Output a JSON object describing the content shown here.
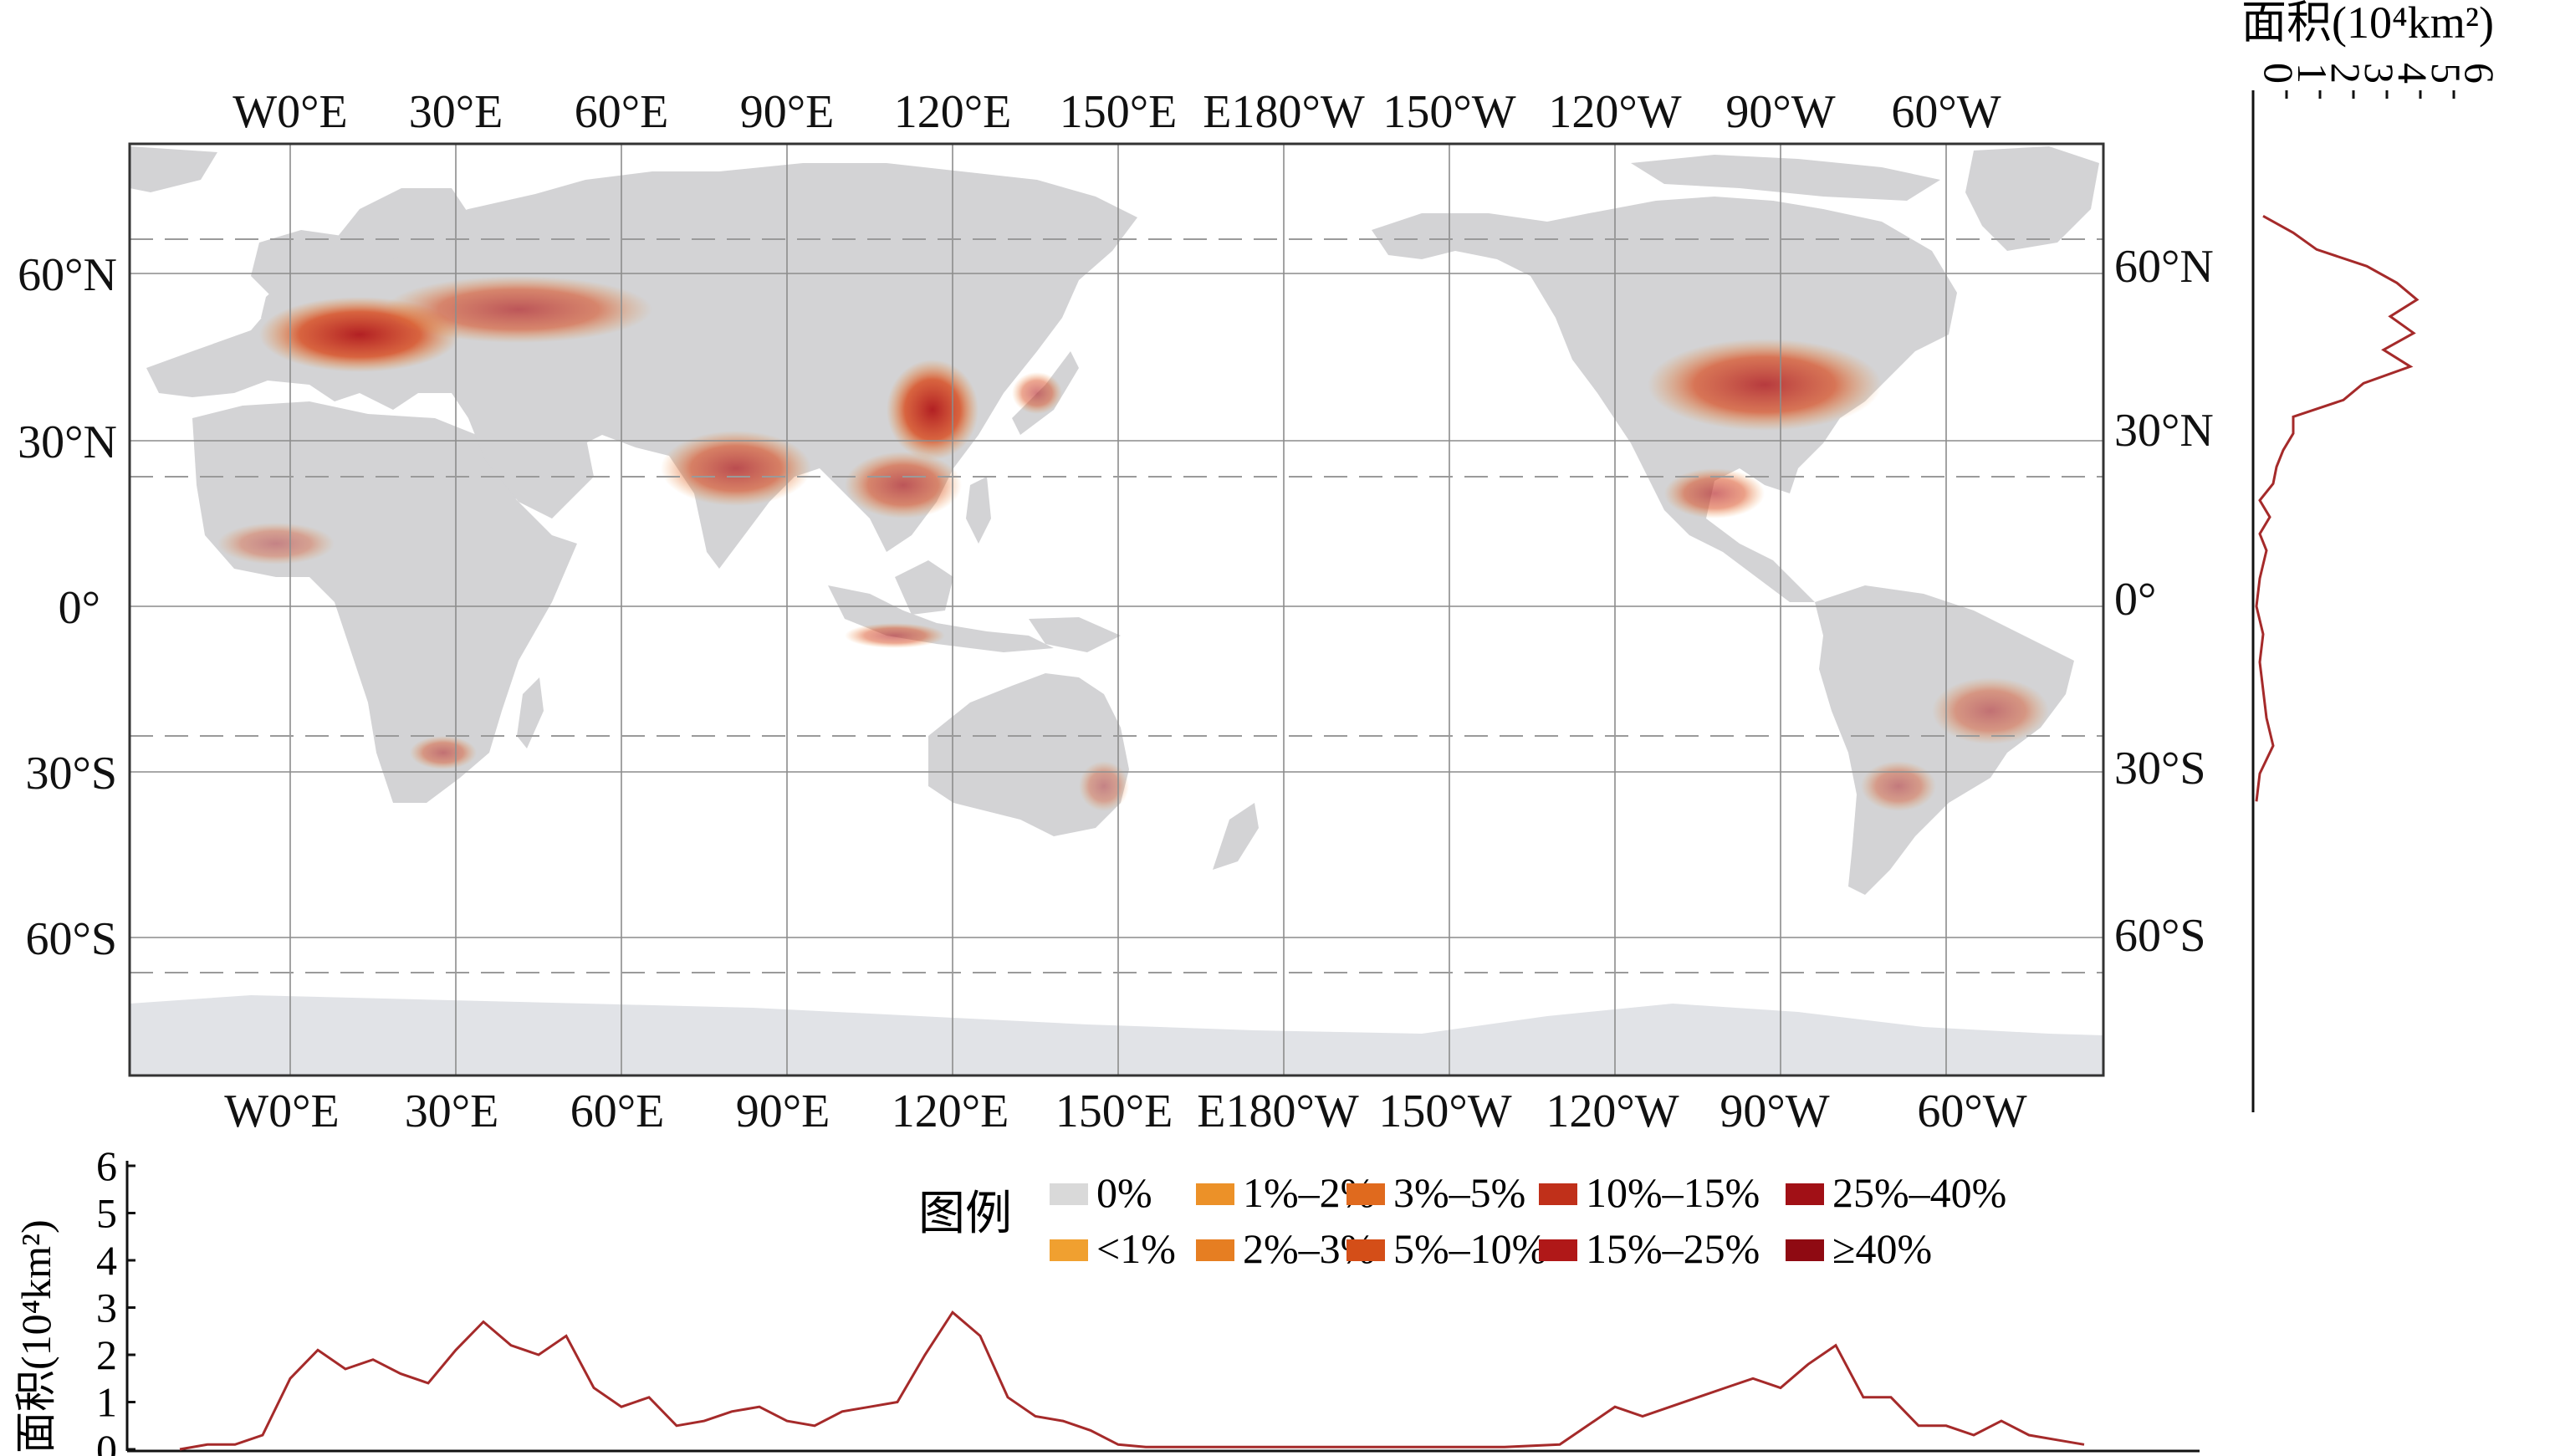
{
  "map": {
    "top_lon_labels": [
      "W0°E",
      "30°E",
      "60°E",
      "90°E",
      "120°E",
      "150°E",
      "E180°W",
      "150°W",
      "120°W",
      "90°W",
      "60°W"
    ],
    "bottom_lon_labels": [
      "W0°E",
      "30°E",
      "60°E",
      "90°E",
      "120°E",
      "150°E",
      "E180°W",
      "150°W",
      "120°W",
      "90°W",
      "60°W"
    ],
    "left_lat_labels": [
      "60°N",
      "30°N",
      "0°",
      "30°S",
      "60°S"
    ],
    "right_lat_labels": [
      "60°N",
      "30°N",
      "0°",
      "30°S",
      "60°S"
    ],
    "colors": {
      "land": "#d3d3d5",
      "ocean": "#ffffff",
      "antarctica": "#e0e2e6",
      "grid": "#888888",
      "tropic_lines": "#999999"
    }
  },
  "legend": {
    "title": "图例",
    "items": [
      {
        "label": "0%",
        "color": "#d9d9d9"
      },
      {
        "label": "<1%",
        "color": "#f0a030"
      },
      {
        "label": "1%–2%",
        "color": "#ec9128"
      },
      {
        "label": "2%–3%",
        "color": "#e67e22"
      },
      {
        "label": "3%–5%",
        "color": "#e06a1e"
      },
      {
        "label": "5%–10%",
        "color": "#d44e18"
      },
      {
        "label": "10%–15%",
        "color": "#c0301a"
      },
      {
        "label": "15%–25%",
        "color": "#b01818"
      },
      {
        "label": "25%–40%",
        "color": "#a11016"
      },
      {
        "label": "≥40%",
        "color": "#8f0a12"
      }
    ]
  },
  "chart_data": [
    {
      "type": "line",
      "orientation": "vertical",
      "ylabel_text": "面积",
      "ylabel_unit": "(10⁴km²)",
      "axis_ticks": [
        "0",
        "1",
        "2",
        "3",
        "4",
        "5",
        "6"
      ],
      "xlim": [
        0,
        6
      ],
      "line_color": "#a52a2a",
      "series": [
        {
          "lat": [
            70,
            67,
            64,
            61,
            58,
            55,
            52,
            49,
            46,
            43,
            40,
            37,
            34,
            31,
            28,
            25,
            22,
            19,
            16,
            13,
            10,
            5,
            0,
            -5,
            -10,
            -15,
            -20,
            -25,
            -30,
            -35
          ],
          "values": [
            0.3,
            1.2,
            1.9,
            3.4,
            4.3,
            4.9,
            4.1,
            4.8,
            3.9,
            4.7,
            3.3,
            2.7,
            1.2,
            1.2,
            0.9,
            0.7,
            0.6,
            0.2,
            0.5,
            0.2,
            0.4,
            0.2,
            0.1,
            0.3,
            0.2,
            0.3,
            0.4,
            0.6,
            0.2,
            0.1
          ]
        }
      ]
    },
    {
      "type": "line",
      "ylabel_text": "面积",
      "ylabel_unit": "(10⁴km²)",
      "yticks": [
        "0",
        "1",
        "2",
        "3",
        "4",
        "5",
        "6"
      ],
      "ylim": [
        0,
        6
      ],
      "line_color": "#a52a2a",
      "series": [
        {
          "lon": [
            -20,
            -15,
            -10,
            -5,
            0,
            5,
            10,
            15,
            20,
            25,
            30,
            35,
            40,
            45,
            50,
            55,
            60,
            65,
            70,
            75,
            80,
            85,
            90,
            95,
            100,
            105,
            110,
            115,
            120,
            125,
            130,
            135,
            140,
            145,
            150,
            155,
            160,
            170,
            180,
            -170,
            -160,
            -150,
            -140,
            -130,
            -125,
            -120,
            -115,
            -110,
            -105,
            -100,
            -95,
            -90,
            -85,
            -80,
            -75,
            -70,
            -65,
            -60,
            -55,
            -50,
            -45,
            -40,
            -35
          ],
          "values": [
            0,
            0.1,
            0.1,
            0.3,
            1.5,
            2.1,
            1.7,
            1.9,
            1.6,
            1.4,
            2.1,
            2.7,
            2.2,
            2.0,
            2.4,
            1.3,
            0.9,
            1.1,
            0.5,
            0.6,
            0.8,
            0.9,
            0.6,
            0.5,
            0.8,
            0.9,
            1.0,
            2.0,
            2.9,
            2.4,
            1.1,
            0.7,
            0.6,
            0.4,
            0.1,
            0.05,
            0.05,
            0.05,
            0.05,
            0.05,
            0.05,
            0.05,
            0.05,
            0.1,
            0.5,
            0.9,
            0.7,
            0.9,
            1.1,
            1.3,
            1.5,
            1.3,
            1.8,
            2.2,
            1.1,
            1.1,
            0.5,
            0.5,
            0.3,
            0.6,
            0.3,
            0.2,
            0.1
          ]
        }
      ]
    }
  ]
}
